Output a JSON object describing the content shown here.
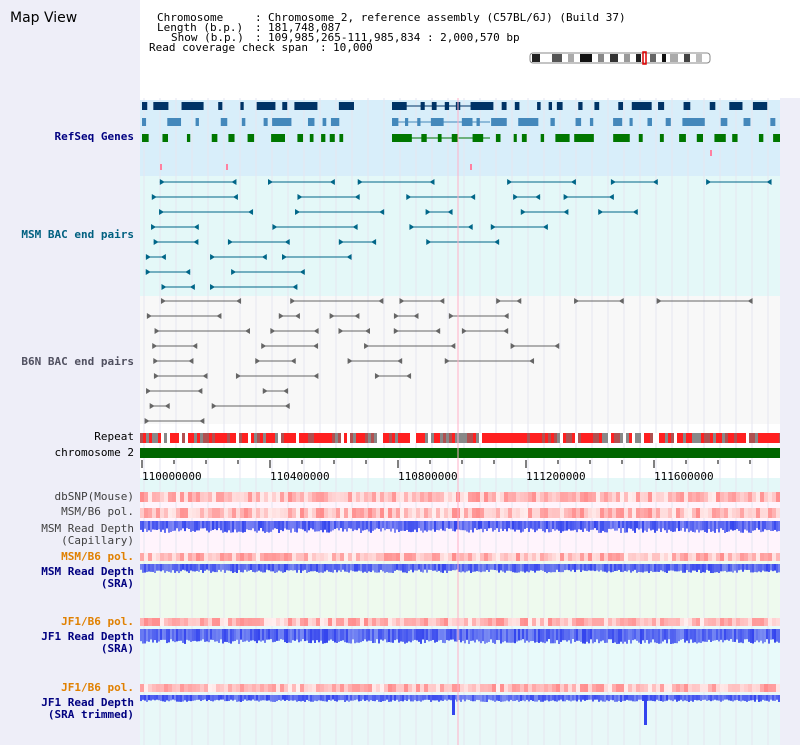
{
  "page": {
    "title": "Map View"
  },
  "header": {
    "chromosome_key": "Chromosome",
    "chromosome_value": "Chromosome 2, reference assembly (C57BL/6J) (Build 37)",
    "length_key": "Length (b.p.)",
    "length_value": "181,748,087",
    "show_key": "Show (b.p.)",
    "show_value": "109,985,265-111,985,834 : 2,000,570 bp",
    "coverage_key": "Read coverage check span",
    "coverage_value": "10,000"
  },
  "tracks": {
    "refseq": "RefSeq Genes",
    "msm_bac": "MSM BAC end pairs",
    "b6n_bac": "B6N BAC end pairs",
    "repeat": "Repeat",
    "chromosome": "chromosome 2",
    "dbsnp": "dbSNP(Mouse)",
    "msm_b6_pol_1": "MSM/B6 pol.",
    "msm_depth_cap_1": "MSM Read Depth",
    "msm_depth_cap_2": "(Capillary)",
    "msm_b6_pol_2": "MSM/B6 pol.",
    "msm_depth_sra_1": "MSM Read Depth",
    "msm_depth_sra_2": "(SRA)",
    "jf1_b6_pol_1": "JF1/B6 pol.",
    "jf1_depth_sra_1": "JF1 Read Depth",
    "jf1_depth_sra_2": "(SRA)",
    "jf1_b6_pol_2": "JF1/B6 pol.",
    "jf1_depth_trim_1": "JF1 Read Depth",
    "jf1_depth_trim_2": "(SRA trimmed)"
  },
  "axis": {
    "ticks": [
      "110000000",
      "110400000",
      "110800000",
      "111200000",
      "111600000"
    ]
  },
  "colors": {
    "refseq_dark": "#003366",
    "refseq_mid": "#4488bb",
    "refseq_green": "#007700",
    "bac_msm": "#006688",
    "bac_b6n": "#666666",
    "repeat_red": "#ff2020",
    "chromosome_green": "#006600",
    "depth_blue": "#3344ee"
  }
}
